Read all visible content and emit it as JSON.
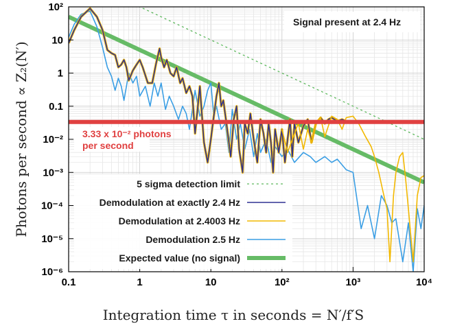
{
  "chart_data": {
    "type": "line",
    "x_scale": "log",
    "y_scale": "log",
    "xlim": [
      0.1,
      10000
    ],
    "ylim": [
      1e-06,
      100
    ],
    "grid": true,
    "xlabel": "Integration time τ in seconds = N′/f′S",
    "ylabel": "Photons per second ∝ Z₂(N′)",
    "x_tick_labels": [
      "0.1",
      "1",
      "10",
      "10²",
      "10³",
      "10⁴"
    ],
    "x_tick_values": [
      0.1,
      1,
      10,
      100,
      1000,
      10000
    ],
    "y_tick_labels": [
      "10²",
      "10",
      "1",
      "0.1",
      "10⁻²",
      "10⁻³",
      "10⁻⁴",
      "10⁻⁵",
      "10⁻⁶"
    ],
    "y_tick_values": [
      100,
      10,
      1,
      0.1,
      0.01,
      0.001,
      0.0001,
      1e-05,
      1e-06
    ],
    "annotations": {
      "signal_box": "Signal present at 2.4 Hz",
      "level_line1": "3.33 x 10⁻² photons",
      "level_line2": "per second",
      "level_value": 0.0333,
      "level_color": "#e04040"
    },
    "legend_position": "bottom-left",
    "series": [
      {
        "name": "5 sigma detection limit",
        "color": "#5cb85c",
        "style": "dotted",
        "x": [
          0.1,
          10000
        ],
        "y": [
          1000,
          0.01
        ]
      },
      {
        "name": "Demodulation at exactly 2.4 Hz",
        "color": "#2e3192",
        "style": "solid",
        "x": [
          0.1,
          0.12,
          0.15,
          0.2,
          0.25,
          0.3,
          0.35,
          0.4,
          0.45,
          0.5,
          0.55,
          0.6,
          0.65,
          0.7,
          0.8,
          0.9,
          1.0,
          1.1,
          1.3,
          1.5,
          1.7,
          1.9,
          2.0,
          2.2,
          2.4,
          2.7,
          3.0,
          3.3,
          3.7,
          4.0,
          4.5,
          5.0,
          5.5,
          6.0,
          6.5,
          7.0,
          7.5,
          8.0,
          9.0,
          10,
          11,
          12,
          13,
          14,
          15,
          17,
          19,
          21,
          23,
          25,
          28,
          30,
          33,
          36,
          40,
          45,
          50,
          55,
          60,
          65,
          70,
          75,
          80,
          90,
          100,
          110,
          120,
          130,
          140,
          150,
          170,
          200,
          230,
          260,
          300,
          350,
          400,
          450,
          500,
          600,
          700,
          800,
          1000,
          1500,
          2000,
          3000,
          5000,
          7000,
          10000
        ],
        "y": [
          8,
          20,
          50,
          90,
          50,
          20,
          5,
          4,
          3.5,
          1.5,
          1.8,
          2.5,
          1.5,
          0.6,
          1.2,
          1.8,
          2.5,
          1.5,
          0.5,
          0.5,
          2,
          5.5,
          3,
          1.5,
          2.5,
          1,
          0.8,
          1.5,
          0.5,
          0.7,
          0.25,
          0.4,
          0.2,
          0.015,
          0.08,
          0.4,
          0.05,
          0.008,
          0.002,
          0.01,
          0.05,
          0.2,
          0.5,
          0.1,
          0.15,
          0.02,
          0.003,
          0.04,
          0.1,
          0.005,
          0.001,
          0.03,
          0.015,
          0.06,
          0.01,
          0.002,
          0.04,
          0.015,
          0.004,
          0.03,
          0.008,
          0.001,
          0.02,
          0.004,
          0.02,
          0.002,
          0.01,
          0.04,
          0.003,
          0.03,
          0.008,
          0.025,
          0.04,
          0.008,
          0.03,
          0.045,
          0.03,
          0.04,
          0.045,
          0.035,
          0.04,
          0.035,
          0.035,
          0.035,
          0.033,
          0.035,
          0.035,
          0.033,
          0.035
        ]
      },
      {
        "name": "Demodulation at 2.4003 Hz",
        "color": "#f2b800",
        "style": "solid",
        "x": [
          100,
          120,
          140,
          170,
          200,
          230,
          260,
          300,
          350,
          400,
          500,
          600,
          700,
          800,
          1000,
          1200,
          1500,
          1800,
          2000,
          2300,
          2600,
          3000,
          3300,
          3700,
          4000,
          4500,
          5000,
          5500,
          6000,
          7000,
          8000,
          9000,
          10000
        ],
        "y": [
          0.02,
          0.004,
          0.01,
          0.03,
          0.005,
          0.02,
          0.008,
          0.03,
          0.045,
          0.012,
          0.05,
          0.04,
          0.02,
          0.045,
          0.05,
          0.03,
          0.012,
          0.006,
          0.003,
          0.001,
          0.0003,
          8e-05,
          2e-06,
          0.0002,
          0.001,
          0.003,
          0.004,
          0.0006,
          8e-05,
          2e-06,
          0.0002,
          0.0007,
          0.0008
        ]
      },
      {
        "name": "Demodulation 2.5 Hz",
        "color": "#3a9ee4",
        "style": "solid",
        "x": [
          0.1,
          0.12,
          0.15,
          0.2,
          0.25,
          0.3,
          0.35,
          0.4,
          0.45,
          0.5,
          0.55,
          0.6,
          0.7,
          0.8,
          0.9,
          1.0,
          1.2,
          1.4,
          1.6,
          1.8,
          2.0,
          2.3,
          2.6,
          3.0,
          3.5,
          4.0,
          4.5,
          5.0,
          5.5,
          6.0,
          7.0,
          8.0,
          9.0,
          10,
          11,
          12,
          14,
          16,
          18,
          20,
          23,
          26,
          30,
          35,
          40,
          45,
          50,
          60,
          70,
          80,
          100,
          120,
          150,
          200,
          250,
          300,
          400,
          500,
          600,
          800,
          1000,
          1300,
          1600,
          2000,
          2500,
          3000,
          3500,
          4000,
          5000,
          6000,
          7000,
          8000,
          9000,
          10000
        ],
        "y": [
          12,
          30,
          60,
          75,
          25,
          6,
          1.5,
          0.8,
          0.3,
          0.7,
          0.4,
          0.15,
          1.0,
          0.5,
          0.8,
          0.2,
          0.4,
          0.1,
          0.5,
          0.2,
          0.5,
          0.08,
          0.2,
          0.1,
          0.04,
          0.1,
          0.06,
          0.02,
          0.08,
          0.3,
          0.05,
          0.1,
          0.3,
          0.5,
          0.05,
          0.1,
          0.02,
          0.03,
          0.004,
          0.08,
          0.01,
          0.03,
          0.005,
          0.02,
          0.003,
          0.015,
          0.004,
          0.01,
          0.002,
          0.006,
          0.003,
          0.005,
          0.002,
          0.004,
          0.003,
          0.002,
          0.003,
          0.002,
          0.0025,
          0.0012,
          0.001,
          2e-05,
          0.0001,
          1e-05,
          0.0002,
          0.0001,
          3e-05,
          4e-05,
          2e-06,
          3e-05,
          1e-06,
          8e-05,
          2e-05,
          0.0001
        ]
      },
      {
        "name": "Expected value (no signal)",
        "color": "#66bb66",
        "style": "thick",
        "x": [
          0.1,
          10000
        ],
        "y": [
          50,
          0.0005
        ]
      }
    ]
  }
}
